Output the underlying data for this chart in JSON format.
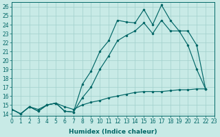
{
  "xlabel": "Humidex (Indice chaleur)",
  "background_color": "#c8eae6",
  "line_color": "#006666",
  "grid_color": "#a0d0cc",
  "xlim": [
    0,
    23
  ],
  "ylim": [
    13.8,
    26.5
  ],
  "xticks": [
    0,
    1,
    2,
    3,
    4,
    5,
    6,
    7,
    8,
    9,
    10,
    11,
    12,
    13,
    14,
    15,
    16,
    17,
    18,
    19,
    20,
    21,
    22,
    23
  ],
  "yticks": [
    14,
    15,
    16,
    17,
    18,
    19,
    20,
    21,
    22,
    23,
    24,
    25,
    26
  ],
  "tick_fontsize": 5.5,
  "xlabel_fontsize": 6.5,
  "series": [
    {
      "x": [
        0,
        1,
        2,
        3,
        4,
        5,
        6,
        7,
        8,
        9,
        10,
        11,
        12,
        13,
        14,
        15,
        16,
        17,
        18,
        19,
        20,
        21,
        22
      ],
      "y": [
        14.5,
        14.0,
        14.8,
        14.3,
        15.0,
        15.2,
        14.3,
        14.2,
        17.3,
        18.8,
        21.0,
        22.2,
        24.5,
        24.3,
        24.2,
        25.7,
        24.0,
        26.2,
        24.5,
        23.3,
        21.7,
        19.0,
        16.8
      ]
    },
    {
      "x": [
        0,
        1,
        2,
        3,
        4,
        5,
        6,
        7,
        8,
        9,
        10,
        11,
        12,
        13,
        14,
        15,
        16,
        17,
        18,
        19,
        20,
        21,
        22
      ],
      "y": [
        14.5,
        14.0,
        14.8,
        14.3,
        15.0,
        15.2,
        14.3,
        14.2,
        15.8,
        17.0,
        19.0,
        20.5,
        22.2,
        22.8,
        23.3,
        24.2,
        23.0,
        24.5,
        23.3,
        23.3,
        23.3,
        21.7,
        16.8
      ]
    },
    {
      "x": [
        0,
        1,
        2,
        3,
        4,
        5,
        6,
        7,
        8,
        9,
        10,
        11,
        12,
        13,
        14,
        15,
        16,
        17,
        18,
        19,
        20,
        21,
        22
      ],
      "y": [
        14.5,
        14.0,
        14.8,
        14.5,
        15.0,
        15.2,
        14.8,
        14.5,
        15.0,
        15.3,
        15.5,
        15.8,
        16.0,
        16.2,
        16.4,
        16.5,
        16.5,
        16.5,
        16.6,
        16.7,
        16.7,
        16.8,
        16.8
      ]
    }
  ]
}
